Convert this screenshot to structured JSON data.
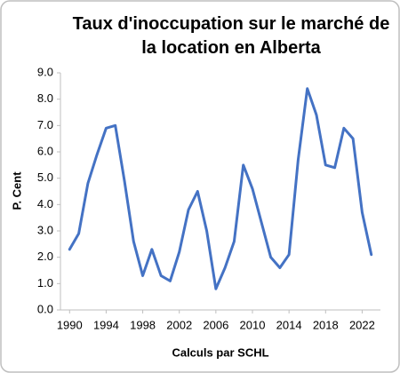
{
  "chart_data": {
    "type": "line",
    "title": "Taux d'inoccupation sur le marché de la location en Alberta",
    "x_label": "Calculs par SCHL",
    "y_label": "P. Cent",
    "x": [
      1990,
      1991,
      1992,
      1993,
      1994,
      1995,
      1996,
      1997,
      1998,
      1999,
      2000,
      2001,
      2002,
      2003,
      2004,
      2005,
      2006,
      2007,
      2008,
      2009,
      2010,
      2011,
      2012,
      2013,
      2014,
      2015,
      2016,
      2017,
      2018,
      2019,
      2020,
      2021,
      2022,
      2023
    ],
    "series": [
      {
        "color": "#4472c4",
        "values": [
          2.3,
          2.9,
          4.8,
          5.9,
          6.9,
          7.0,
          4.9,
          2.6,
          1.3,
          2.3,
          1.3,
          1.1,
          2.2,
          3.8,
          4.5,
          3.0,
          0.8,
          1.6,
          2.6,
          5.5,
          4.6,
          3.3,
          2.0,
          1.6,
          2.1,
          5.7,
          8.4,
          7.4,
          5.5,
          5.4,
          6.9,
          6.5,
          3.7,
          2.1
        ]
      }
    ],
    "xlim": [
      1989,
      2024
    ],
    "xticks": [
      1990,
      1994,
      1998,
      2002,
      2006,
      2010,
      2014,
      2018,
      2022
    ],
    "ylim": [
      0,
      9
    ],
    "yticks": [
      {
        "value": 0,
        "label": "0.0"
      },
      {
        "value": 1,
        "label": "1.0"
      },
      {
        "value": 2,
        "label": "2.0"
      },
      {
        "value": 3,
        "label": "3.0"
      },
      {
        "value": 4,
        "label": "4.0"
      },
      {
        "value": 5,
        "label": "5.0"
      },
      {
        "value": 6,
        "label": "6.0"
      },
      {
        "value": 7,
        "label": "7.0"
      },
      {
        "value": 8,
        "label": "8.0"
      },
      {
        "value": 9,
        "label": "9.0"
      }
    ],
    "grid": false
  }
}
